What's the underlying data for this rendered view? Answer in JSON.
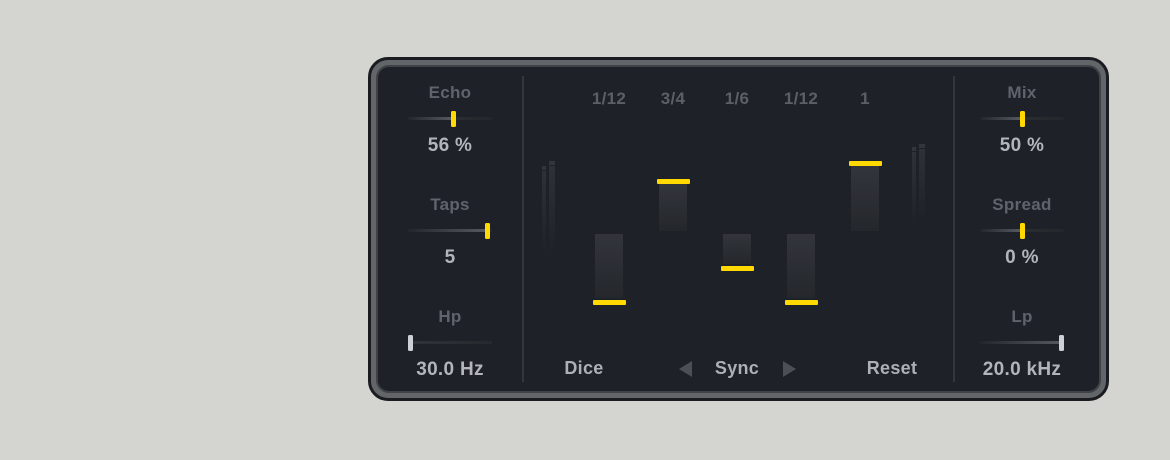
{
  "page": {
    "background": "#d4d4d0"
  },
  "device": {
    "colors": {
      "accent": "#ffd900",
      "neutral": "#cdd0d4",
      "panel": "#1e2127",
      "frame": "#636669",
      "label": "#5f636c",
      "value": "#b2b5ba",
      "divider": "#33363b",
      "arrow": "#4c5056"
    },
    "left_controls": [
      {
        "id": "echo",
        "label": "Echo",
        "value": "56 %",
        "fill": 0.54,
        "handle": "accent"
      },
      {
        "id": "taps",
        "label": "Taps",
        "value": "5",
        "fill": 0.97,
        "handle": "accent"
      },
      {
        "id": "hp",
        "label": "Hp",
        "value": "30.0 Hz",
        "fill": 0.0,
        "handle": "neutral"
      }
    ],
    "right_controls": [
      {
        "id": "mix",
        "label": "Mix",
        "value": "50 %",
        "fill": 0.5,
        "handle": "accent"
      },
      {
        "id": "spread",
        "label": "Spread",
        "value": "0 %",
        "fill": 0.5,
        "handle": "accent"
      },
      {
        "id": "lp",
        "label": "Lp",
        "value": "20.0 kHz",
        "fill": 1.0,
        "handle": "neutral"
      }
    ],
    "tap_editor": {
      "taps": [
        {
          "label": "1/12",
          "level": -0.92
        },
        {
          "label": "3/4",
          "level": 0.62
        },
        {
          "label": "1/6",
          "level": -0.47
        },
        {
          "label": "1/12",
          "level": -0.92
        },
        {
          "label": "1",
          "level": 0.86
        }
      ]
    },
    "footer": {
      "dice": "Dice",
      "sync": "Sync",
      "reset": "Reset"
    }
  }
}
